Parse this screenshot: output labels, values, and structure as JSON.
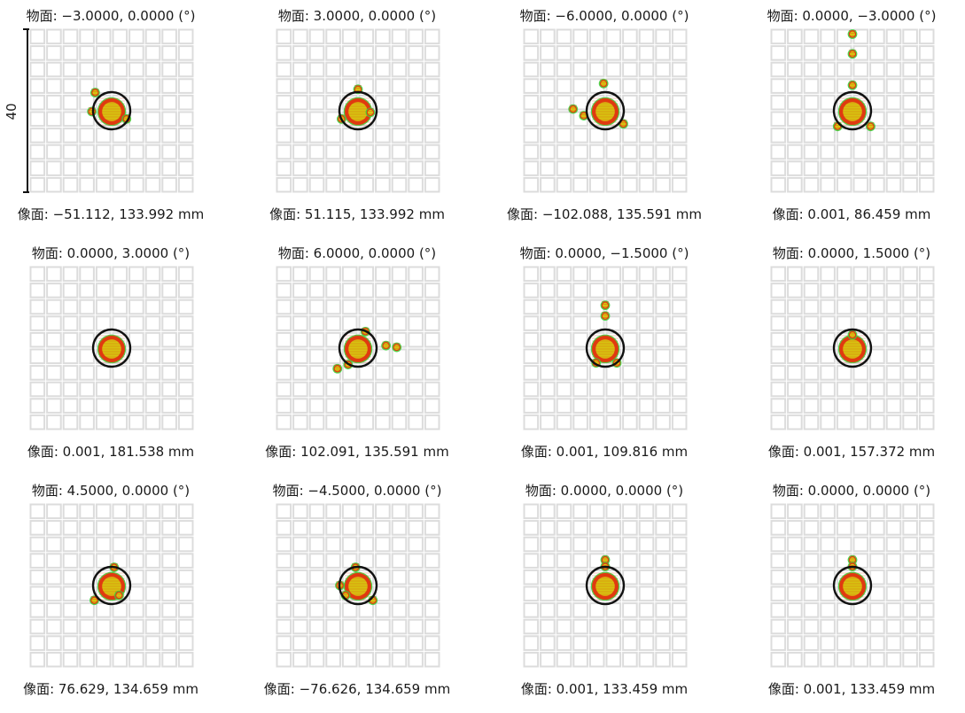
{
  "colors": {
    "grid": "#dcdcdc",
    "spot_fill": "#c8b400",
    "spot_core": "#d7c210",
    "spot_ray": "#e03a10",
    "spot_edge": "#3ad43a",
    "airy_circle": "#111111"
  },
  "scale_label": "40",
  "spots": [
    {
      "object": "物面: −3.0000, 0.0000 (°)",
      "image": "像面: −51.112, 133.992 mm",
      "satellites": [
        [
          -2,
          -2.2
        ],
        [
          -2.4,
          0.1
        ],
        [
          1.8,
          1
        ]
      ]
    },
    {
      "object": "物面: 3.0000, 0.0000 (°)",
      "image": "像面: 51.115, 133.992 mm",
      "satellites": [
        [
          0,
          -2.6
        ],
        [
          1.5,
          0.2
        ],
        [
          -2,
          1
        ]
      ]
    },
    {
      "object": "物面: −6.0000, 0.0000 (°)",
      "image": "像面: −102.088, 135.591 mm",
      "satellites": [
        [
          -0.2,
          -3.3
        ],
        [
          -3.9,
          -0.2
        ],
        [
          -2.6,
          0.6
        ],
        [
          2.2,
          1.6
        ]
      ]
    },
    {
      "object": "物面: 0.0000, −3.0000 (°)",
      "image": "像面: 0.001, 86.459 mm",
      "satellites": [
        [
          0,
          -9.3
        ],
        [
          0,
          -6.9
        ],
        [
          0,
          -3.1
        ],
        [
          -1.8,
          1.9
        ],
        [
          2.2,
          1.9
        ]
      ]
    },
    {
      "object": "物面: 0.0000, 3.0000 (°)",
      "image": "像面: 0.001, 181.538 mm",
      "satellites": []
    },
    {
      "object": "物面: 6.0000, 0.0000 (°)",
      "image": "像面: 102.091, 135.591 mm",
      "satellites": [
        [
          0.9,
          -2
        ],
        [
          3.4,
          -0.3
        ],
        [
          4.7,
          -0.1
        ],
        [
          -1.2,
          2
        ],
        [
          -2.5,
          2.5
        ]
      ]
    },
    {
      "object": "物面: 0.0000, −1.5000 (°)",
      "image": "像面: 0.001, 109.816 mm",
      "satellites": [
        [
          0,
          -5.2
        ],
        [
          0,
          -3.9
        ],
        [
          -1.1,
          1.8
        ],
        [
          1.4,
          1.8
        ]
      ]
    },
    {
      "object": "物面: 0.0000, 1.5000 (°)",
      "image": "像面: 0.001, 157.372 mm",
      "satellites": [
        [
          0,
          -1.6
        ]
      ]
    },
    {
      "object": "物面: 4.5000, 0.0000 (°)",
      "image": "像面: 76.629, 134.659 mm",
      "satellites": [
        [
          0.3,
          -2.2
        ],
        [
          0.9,
          1.2
        ],
        [
          -2.1,
          1.8
        ]
      ]
    },
    {
      "object": "物面: −4.5000, 0.0000 (°)",
      "image": "像面: −76.626, 134.659 mm",
      "satellites": [
        [
          -0.3,
          -2.2
        ],
        [
          -2.2,
          0
        ],
        [
          -1.5,
          1.2
        ],
        [
          1.8,
          1.8
        ]
      ]
    },
    {
      "object": "物面: 0.0000, 0.0000 (°)",
      "image": "像面: 0.001, 133.459 mm",
      "satellites": [
        [
          0,
          -3.1
        ],
        [
          0,
          -2.3
        ]
      ]
    },
    {
      "object": "物面: 0.0000, 0.0000 (°)",
      "image": "像面: 0.001, 133.459 mm",
      "satellites": [
        [
          0,
          -3.1
        ],
        [
          0,
          -2.3
        ]
      ]
    }
  ]
}
